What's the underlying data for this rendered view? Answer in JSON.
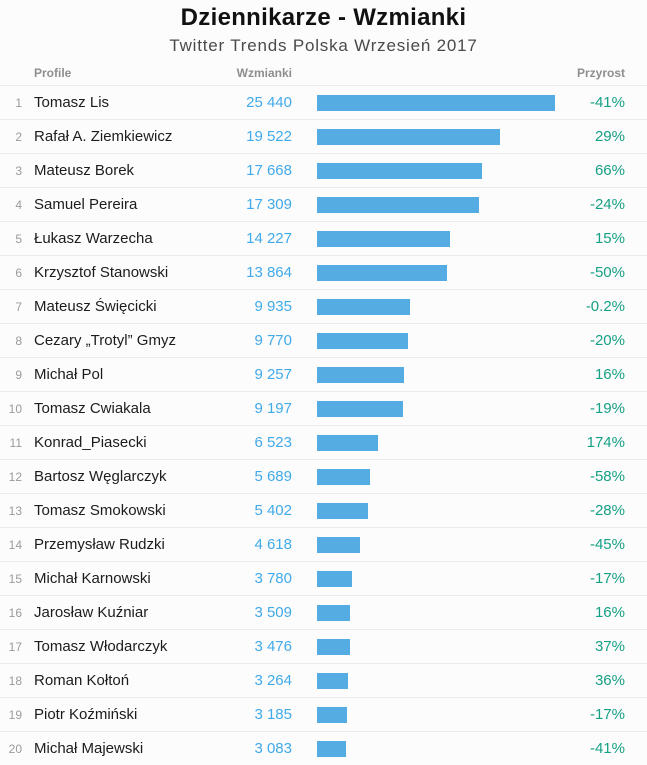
{
  "header": {
    "title": "Dziennikarze - Wzmianki",
    "subtitle": "Twitter Trends Polska Wrzesień 2017"
  },
  "colors": {
    "bar": "#55ace3",
    "value_text": "#41aaea",
    "growth_text": "#16a085"
  },
  "table": {
    "columns": {
      "profile": "Profile",
      "mentions": "Wzmianki",
      "growth": "Przyrost"
    },
    "max_mentions": 25440,
    "rows": [
      {
        "rank": "1",
        "name": "Tomasz Lis",
        "mentions": "25 440",
        "mentions_value": 25440,
        "growth": "-41%"
      },
      {
        "rank": "2",
        "name": "Rafał A. Ziemkiewicz",
        "mentions": "19 522",
        "mentions_value": 19522,
        "growth": "29%"
      },
      {
        "rank": "3",
        "name": "Mateusz Borek",
        "mentions": "17 668",
        "mentions_value": 17668,
        "growth": "66%"
      },
      {
        "rank": "4",
        "name": "Samuel Pereira",
        "mentions": "17 309",
        "mentions_value": 17309,
        "growth": "-24%"
      },
      {
        "rank": "5",
        "name": "Łukasz Warzecha",
        "mentions": "14 227",
        "mentions_value": 14227,
        "growth": "15%"
      },
      {
        "rank": "6",
        "name": "Krzysztof Stanowski",
        "mentions": "13 864",
        "mentions_value": 13864,
        "growth": "-50%"
      },
      {
        "rank": "7",
        "name": "Mateusz Święcicki",
        "mentions": "9 935",
        "mentions_value": 9935,
        "growth": "-0.2%"
      },
      {
        "rank": "8",
        "name": "Cezary „Trotyl” Gmyz",
        "mentions": "9 770",
        "mentions_value": 9770,
        "growth": "-20%"
      },
      {
        "rank": "9",
        "name": "Michał Pol",
        "mentions": "9 257",
        "mentions_value": 9257,
        "growth": "16%"
      },
      {
        "rank": "10",
        "name": "Tomasz Cwiakala",
        "mentions": "9 197",
        "mentions_value": 9197,
        "growth": "-19%"
      },
      {
        "rank": "11",
        "name": "Konrad_Piasecki",
        "mentions": "6 523",
        "mentions_value": 6523,
        "growth": "174%"
      },
      {
        "rank": "12",
        "name": "Bartosz Węglarczyk",
        "mentions": "5 689",
        "mentions_value": 5689,
        "growth": "-58%"
      },
      {
        "rank": "13",
        "name": "Tomasz Smokowski",
        "mentions": "5 402",
        "mentions_value": 5402,
        "growth": "-28%"
      },
      {
        "rank": "14",
        "name": "Przemysław Rudzki",
        "mentions": "4 618",
        "mentions_value": 4618,
        "growth": "-45%"
      },
      {
        "rank": "15",
        "name": "Michał Karnowski",
        "mentions": "3 780",
        "mentions_value": 3780,
        "growth": "-17%"
      },
      {
        "rank": "16",
        "name": "Jarosław Kuźniar",
        "mentions": "3 509",
        "mentions_value": 3509,
        "growth": "16%"
      },
      {
        "rank": "17",
        "name": "Tomasz Włodarczyk",
        "mentions": "3 476",
        "mentions_value": 3476,
        "growth": "37%"
      },
      {
        "rank": "18",
        "name": "Roman Kołtoń",
        "mentions": "3 264",
        "mentions_value": 3264,
        "growth": "36%"
      },
      {
        "rank": "19",
        "name": "Piotr Koźmiński",
        "mentions": "3 185",
        "mentions_value": 3185,
        "growth": "-17%"
      },
      {
        "rank": "20",
        "name": "Michał Majewski",
        "mentions": "3 083",
        "mentions_value": 3083,
        "growth": "-41%"
      }
    ]
  },
  "chart_data": {
    "type": "bar",
    "orientation": "horizontal",
    "title": "Dziennikarze - Wzmianki",
    "subtitle": "Twitter Trends Polska Wrzesień 2017",
    "categories": [
      "Tomasz Lis",
      "Rafał A. Ziemkiewicz",
      "Mateusz Borek",
      "Samuel Pereira",
      "Łukasz Warzecha",
      "Krzysztof Stanowski",
      "Mateusz Święcicki",
      "Cezary „Trotyl” Gmyz",
      "Michał Pol",
      "Tomasz Cwiakala",
      "Konrad_Piasecki",
      "Bartosz Węglarczyk",
      "Tomasz Smokowski",
      "Przemysław Rudzki",
      "Michał Karnowski",
      "Jarosław Kuźniar",
      "Tomasz Włodarczyk",
      "Roman Kołtoń",
      "Piotr Koźmiński",
      "Michał Majewski"
    ],
    "series": [
      {
        "name": "Wzmianki",
        "values": [
          25440,
          19522,
          17668,
          17309,
          14227,
          13864,
          9935,
          9770,
          9257,
          9197,
          6523,
          5689,
          5402,
          4618,
          3780,
          3509,
          3476,
          3264,
          3185,
          3083
        ]
      },
      {
        "name": "Przyrost %",
        "values": [
          -41,
          29,
          66,
          -24,
          15,
          -50,
          -0.2,
          -20,
          16,
          -19,
          174,
          -58,
          -28,
          -45,
          -17,
          16,
          37,
          36,
          -17,
          -41
        ]
      }
    ],
    "xlim": [
      0,
      25440
    ],
    "grid": false,
    "legend": false
  }
}
